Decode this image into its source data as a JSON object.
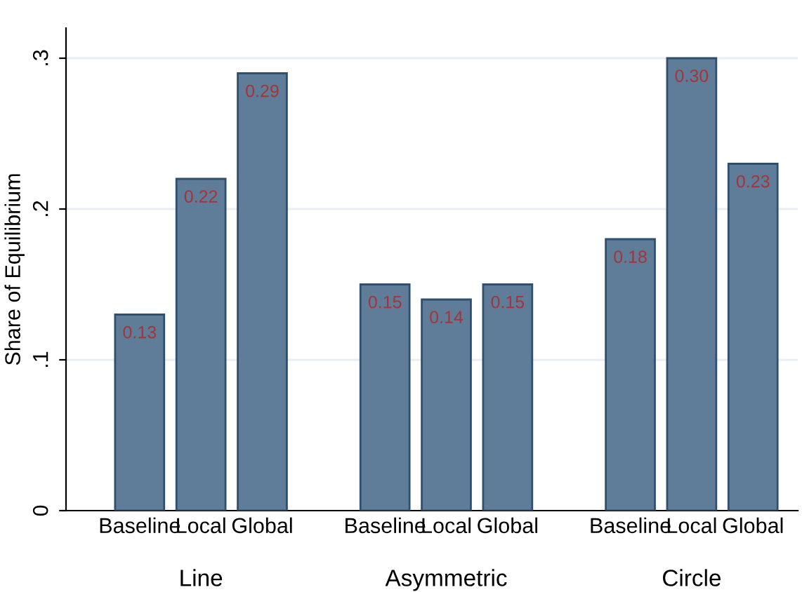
{
  "chart_data": {
    "type": "bar",
    "ylabel": "Share of Equilibrium",
    "categories": [
      "Baseline",
      "Local",
      "Global",
      null,
      "Baseline",
      "Local",
      "Global",
      null,
      "Baseline",
      "Local",
      "Global"
    ],
    "values": [
      0.13,
      0.22,
      0.29,
      null,
      0.15,
      0.14,
      0.15,
      null,
      0.18,
      0.3,
      0.23
    ],
    "value_labels": [
      "0.13",
      "0.22",
      "0.29",
      null,
      "0.15",
      "0.14",
      "0.15",
      null,
      "0.18",
      "0.30",
      "0.23"
    ],
    "color": "#5f7d99",
    "ylim": [
      0,
      0.32
    ],
    "yticks": [
      {
        "value": 0,
        "label": "0"
      },
      {
        "value": 0.1,
        "label": ".1"
      },
      {
        "value": 0.2,
        "label": ".2"
      },
      {
        "value": 0.3,
        "label": ".3"
      }
    ],
    "grid": "y",
    "annotations": [
      "Line",
      "Asymmetric",
      "Circle"
    ]
  }
}
